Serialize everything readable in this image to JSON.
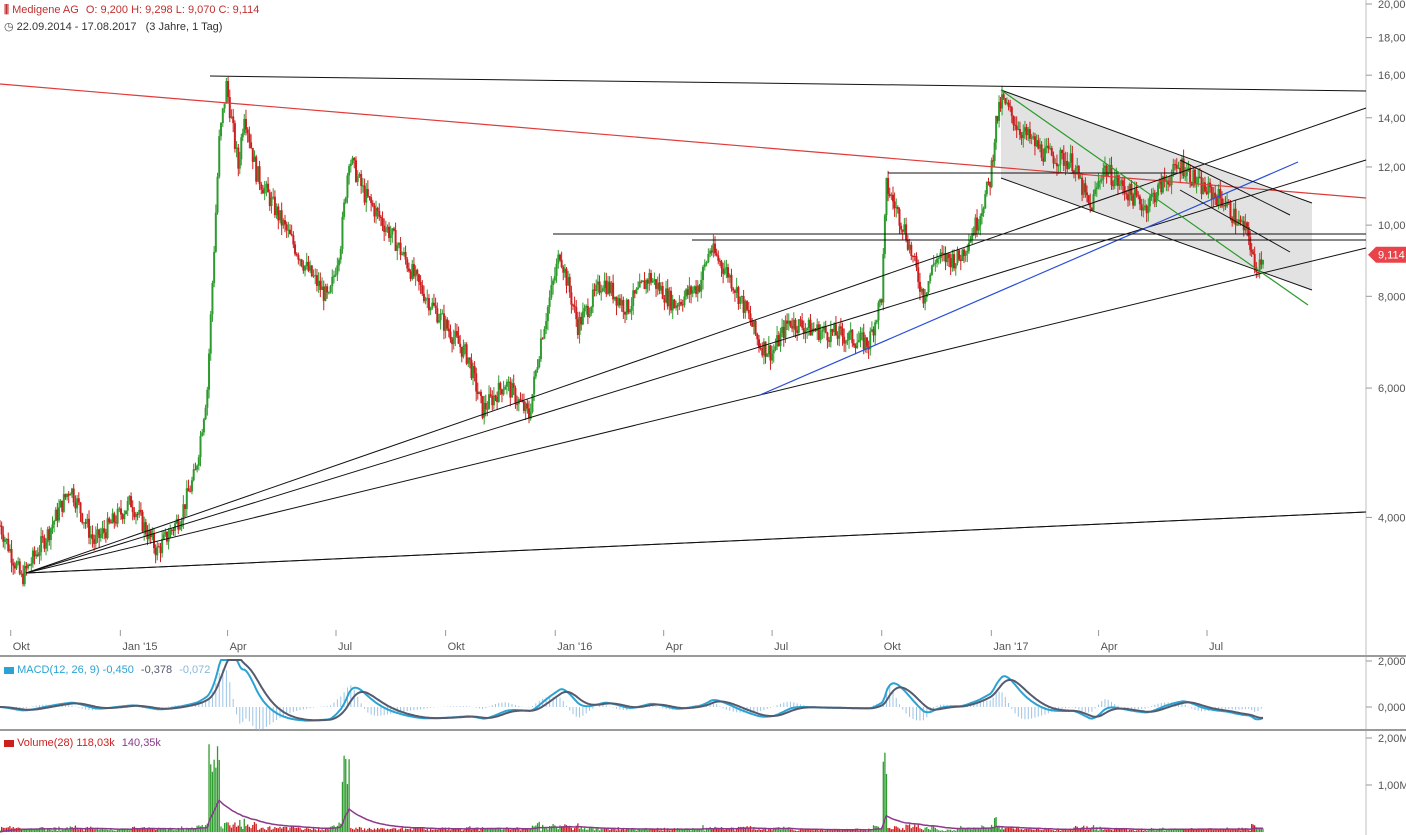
{
  "header": {
    "instrument": "Medigene AG",
    "ohlc": "O: 9,200  H: 9,298  L: 9,070  C: 9,114",
    "range": "22.09.2014 - 17.08.2017",
    "span": "(3 Jahre, 1 Tag)"
  },
  "chart_data": {
    "type": "candlestick",
    "yscale": "log",
    "ylim": [
      2.9,
      20.0
    ],
    "y_ticks": [
      "20,000",
      "18,000",
      "16,000",
      "14,000",
      "12,000",
      "10,000",
      "8,000",
      "6,000",
      "4,000"
    ],
    "x_ticks": [
      "Okt",
      "Jan '15",
      "Apr",
      "Jul",
      "Okt",
      "Jan '16",
      "Apr",
      "Jul",
      "Okt",
      "Jan '17",
      "Apr",
      "Jul"
    ],
    "last_price_label": "9,114",
    "last_price": 9.114,
    "price_path": [
      [
        "2014-09-22",
        3.9
      ],
      [
        "2014-10-10",
        3.3
      ],
      [
        "2014-11-01",
        3.8
      ],
      [
        "2014-11-20",
        4.4
      ],
      [
        "2014-12-10",
        3.7
      ],
      [
        "2015-01-10",
        4.2
      ],
      [
        "2015-02-01",
        3.6
      ],
      [
        "2015-02-20",
        4.0
      ],
      [
        "2015-03-05",
        4.6
      ],
      [
        "2015-03-15",
        6.0
      ],
      [
        "2015-03-25",
        13.0
      ],
      [
        "2015-03-31",
        15.5
      ],
      [
        "2015-04-10",
        12.0
      ],
      [
        "2015-04-15",
        14.3
      ],
      [
        "2015-04-25",
        11.8
      ],
      [
        "2015-05-15",
        10.2
      ],
      [
        "2015-06-05",
        8.8
      ],
      [
        "2015-06-25",
        7.9
      ],
      [
        "2015-07-05",
        9.5
      ],
      [
        "2015-07-12",
        12.4
      ],
      [
        "2015-07-25",
        11.0
      ],
      [
        "2015-08-20",
        9.5
      ],
      [
        "2015-09-10",
        8.2
      ],
      [
        "2015-10-01",
        7.3
      ],
      [
        "2015-10-20",
        6.6
      ],
      [
        "2015-11-01",
        5.6
      ],
      [
        "2015-11-20",
        6.1
      ],
      [
        "2015-12-10",
        5.5
      ],
      [
        "2015-12-20",
        7.0
      ],
      [
        "2016-01-05",
        9.2
      ],
      [
        "2016-01-20",
        7.3
      ],
      [
        "2016-02-10",
        8.4
      ],
      [
        "2016-03-01",
        7.7
      ],
      [
        "2016-03-20",
        8.5
      ],
      [
        "2016-04-10",
        7.8
      ],
      [
        "2016-05-01",
        8.3
      ],
      [
        "2016-05-10",
        9.3
      ],
      [
        "2016-05-25",
        8.6
      ],
      [
        "2016-06-10",
        7.6
      ],
      [
        "2016-06-20",
        6.9
      ],
      [
        "2016-07-01",
        6.7
      ],
      [
        "2016-07-15",
        7.4
      ],
      [
        "2016-08-05",
        7.2
      ],
      [
        "2016-08-25",
        7.1
      ],
      [
        "2016-09-20",
        6.9
      ],
      [
        "2016-10-01",
        8.0
      ],
      [
        "2016-10-05",
        11.3
      ],
      [
        "2016-10-20",
        9.9
      ],
      [
        "2016-11-05",
        8.0
      ],
      [
        "2016-11-15",
        9.0
      ],
      [
        "2016-12-05",
        9.0
      ],
      [
        "2016-12-20",
        10.1
      ],
      [
        "2016-12-31",
        11.5
      ],
      [
        "2017-01-05",
        13.8
      ],
      [
        "2017-01-10",
        14.8
      ],
      [
        "2017-01-25",
        13.5
      ],
      [
        "2017-02-15",
        12.5
      ],
      [
        "2017-03-10",
        12.2
      ],
      [
        "2017-03-25",
        10.5
      ],
      [
        "2017-04-05",
        12.0
      ],
      [
        "2017-04-20",
        11.3
      ],
      [
        "2017-05-10",
        10.6
      ],
      [
        "2017-05-25",
        11.4
      ],
      [
        "2017-06-10",
        12.1
      ],
      [
        "2017-06-25",
        11.3
      ],
      [
        "2017-07-15",
        10.8
      ],
      [
        "2017-07-25",
        10.2
      ],
      [
        "2017-08-05",
        9.7
      ],
      [
        "2017-08-10",
        8.7
      ],
      [
        "2017-08-17",
        9.114
      ]
    ]
  },
  "macd": {
    "label": "MACD(12, 26, 9)",
    "values": [
      "-0,450",
      "-0,378",
      "-0,072"
    ],
    "y_ticks": [
      "2,000",
      "0,000"
    ]
  },
  "volume": {
    "label": "Volume(28)",
    "values": [
      "118,03k",
      "140,35k"
    ],
    "y_ticks": [
      "2,00M",
      "1,00M"
    ]
  },
  "colors": {
    "up": "#2e9b2e",
    "down": "#cc1f1f",
    "macd_line": "#2aa3d4",
    "signal_line": "#555b6e",
    "ma_volume": "#8b3a8b",
    "trend_red": "#e03a3a",
    "trend_blue": "#2a4fd8",
    "trend_green": "#2a9b2a",
    "last_price_bg": "#e8434a"
  }
}
